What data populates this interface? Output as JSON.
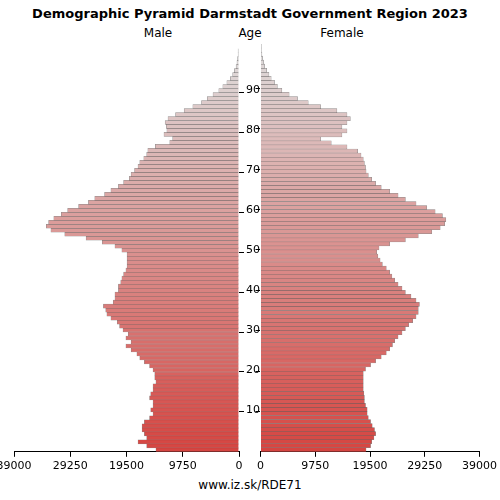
{
  "chart_data": {
    "type": "bar",
    "orientation": "horizontal",
    "title": "Demographic Pyramid Darmstadt Government Region 2023",
    "y_label": "Age",
    "footer": "www.iz.sk/RDE71",
    "categories": [
      null,
      null,
      null,
      null,
      null,
      null,
      null,
      null,
      null,
      null,
      10,
      null,
      null,
      null,
      null,
      null,
      null,
      null,
      null,
      null,
      20,
      null,
      null,
      null,
      null,
      null,
      null,
      null,
      null,
      null,
      30,
      null,
      null,
      null,
      null,
      null,
      null,
      null,
      null,
      null,
      40,
      null,
      null,
      null,
      null,
      null,
      null,
      null,
      null,
      null,
      50,
      null,
      null,
      null,
      null,
      null,
      null,
      null,
      null,
      null,
      60,
      null,
      null,
      null,
      null,
      null,
      null,
      null,
      null,
      null,
      70,
      null,
      null,
      null,
      null,
      null,
      null,
      null,
      null,
      null,
      80,
      null,
      null,
      null,
      null,
      null,
      null,
      null,
      null,
      null,
      90,
      null,
      null,
      null,
      null,
      null,
      null,
      null,
      null,
      null,
      null
    ],
    "series": [
      {
        "name": "Male",
        "color": "#d64541",
        "values": [
          14400,
          16000,
          17500,
          16000,
          16400,
          16800,
          16800,
          16400,
          15500,
          14900,
          15300,
          14900,
          14900,
          15500,
          15300,
          14900,
          14900,
          14400,
          14600,
          14600,
          14900,
          15500,
          16400,
          17200,
          17700,
          18700,
          19600,
          18700,
          19600,
          19200,
          20100,
          20700,
          21100,
          22200,
          22900,
          23100,
          23500,
          21800,
          21500,
          21500,
          20900,
          20900,
          20500,
          20300,
          20000,
          19600,
          19400,
          19400,
          19400,
          19400,
          20300,
          21500,
          23700,
          26500,
          30200,
          32600,
          33400,
          33000,
          32100,
          30800,
          29700,
          27800,
          26100,
          25000,
          23300,
          22200,
          20900,
          20000,
          19000,
          18700,
          18100,
          17500,
          17200,
          16500,
          16000,
          15800,
          14500,
          12000,
          11500,
          13000,
          12500,
          12600,
          12800,
          12300,
          11000,
          9500,
          8000,
          6500,
          5500,
          4500,
          3500,
          2800,
          2100,
          1500,
          1100,
          800,
          500,
          350,
          250,
          150,
          150
        ]
      },
      {
        "name": "Female",
        "color": "#d64541",
        "values": [
          18800,
          19600,
          19800,
          20200,
          20500,
          20300,
          19900,
          19600,
          19200,
          19000,
          19000,
          18700,
          18500,
          18500,
          18400,
          18300,
          18300,
          18300,
          18300,
          18300,
          18700,
          19600,
          20500,
          21500,
          22400,
          23000,
          23500,
          23900,
          24500,
          25200,
          25800,
          26400,
          27100,
          27700,
          28100,
          28100,
          28300,
          27700,
          26800,
          25800,
          25200,
          24500,
          23900,
          23400,
          23000,
          22400,
          21700,
          21300,
          20900,
          20700,
          21100,
          23000,
          25800,
          28100,
          30500,
          32000,
          32800,
          33000,
          32400,
          31100,
          29600,
          27700,
          25800,
          24500,
          23000,
          21500,
          20500,
          19800,
          19200,
          18800,
          18700,
          18500,
          18300,
          17900,
          17300,
          15400,
          12600,
          10700,
          14500,
          15400,
          14500,
          15400,
          16000,
          15400,
          13600,
          10700,
          8500,
          6600,
          5100,
          3800,
          3000,
          2500,
          1900,
          1500,
          1100,
          750,
          550,
          380,
          250,
          150,
          150
        ]
      }
    ],
    "xlim": [
      0,
      39000
    ],
    "xticks": [
      0,
      9750,
      19500,
      29250,
      39000
    ],
    "grid": false
  }
}
